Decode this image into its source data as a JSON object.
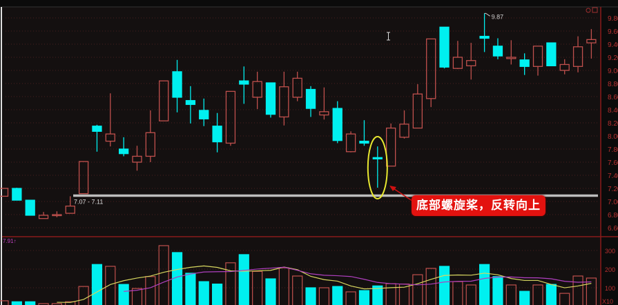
{
  "chart_data": {
    "type": "candlestick",
    "colors": {
      "up": "#c0504d",
      "down": "#00f0f0",
      "ma_short": "#d8d860",
      "ma_long": "#b040c0",
      "support_line": "#bdbdbd",
      "callout": "#e3120f",
      "highlight_ellipse": "#e8e830"
    },
    "price_axis": {
      "range": [
        6.6,
        9.95
      ],
      "ticks": [
        9.8,
        9.6,
        9.4,
        9.2,
        9.0,
        8.8,
        8.6,
        8.4,
        8.2,
        8.0,
        7.8,
        7.6,
        7.4,
        7.2,
        7.0,
        6.8,
        6.6
      ],
      "grid": true
    },
    "candles": [
      {
        "o": 7.08,
        "h": 7.2,
        "l": 7.08,
        "c": 7.2
      },
      {
        "o": 7.2,
        "h": 7.21,
        "l": 7.02,
        "c": 7.02
      },
      {
        "o": 7.02,
        "h": 7.02,
        "l": 6.79,
        "c": 6.79
      },
      {
        "o": 6.74,
        "h": 6.84,
        "l": 6.74,
        "c": 6.79
      },
      {
        "o": 6.79,
        "h": 6.85,
        "l": 6.76,
        "c": 6.8
      },
      {
        "o": 6.82,
        "h": 7.08,
        "l": 6.82,
        "c": 6.93
      },
      {
        "o": 7.12,
        "h": 7.61,
        "l": 7.12,
        "c": 7.61
      },
      {
        "o": 8.15,
        "h": 8.17,
        "l": 7.76,
        "c": 8.07
      },
      {
        "o": 7.92,
        "h": 8.65,
        "l": 7.84,
        "c": 8.03
      },
      {
        "o": 7.8,
        "h": 7.98,
        "l": 7.69,
        "c": 7.73
      },
      {
        "o": 7.6,
        "h": 7.85,
        "l": 7.47,
        "c": 7.69
      },
      {
        "o": 7.69,
        "h": 8.39,
        "l": 7.6,
        "c": 8.05
      },
      {
        "o": 8.23,
        "h": 8.84,
        "l": 8.23,
        "c": 8.84
      },
      {
        "o": 8.98,
        "h": 9.16,
        "l": 8.36,
        "c": 8.59
      },
      {
        "o": 8.54,
        "h": 8.76,
        "l": 8.19,
        "c": 8.48
      },
      {
        "o": 8.39,
        "h": 8.57,
        "l": 8.15,
        "c": 8.26
      },
      {
        "o": 8.15,
        "h": 8.35,
        "l": 7.75,
        "c": 7.91
      },
      {
        "o": 7.89,
        "h": 8.68,
        "l": 7.85,
        "c": 8.68
      },
      {
        "o": 8.84,
        "h": 9.06,
        "l": 8.49,
        "c": 8.79
      },
      {
        "o": 8.59,
        "h": 8.98,
        "l": 8.41,
        "c": 8.83
      },
      {
        "o": 8.81,
        "h": 8.81,
        "l": 8.28,
        "c": 8.33
      },
      {
        "o": 8.29,
        "h": 8.98,
        "l": 8.16,
        "c": 8.75
      },
      {
        "o": 8.59,
        "h": 8.98,
        "l": 8.53,
        "c": 8.88
      },
      {
        "o": 8.71,
        "h": 8.76,
        "l": 8.29,
        "c": 8.42
      },
      {
        "o": 8.32,
        "h": 8.74,
        "l": 8.25,
        "c": 8.37
      },
      {
        "o": 8.42,
        "h": 8.53,
        "l": 7.89,
        "c": 7.93
      },
      {
        "o": 7.76,
        "h": 8.07,
        "l": 7.75,
        "c": 8.03
      },
      {
        "o": 7.92,
        "h": 8.24,
        "l": 7.85,
        "c": 7.89
      },
      {
        "o": 7.67,
        "h": 7.84,
        "l": 7.21,
        "c": 7.65
      },
      {
        "o": 7.54,
        "h": 8.19,
        "l": 7.54,
        "c": 8.12
      },
      {
        "o": 7.98,
        "h": 8.39,
        "l": 7.96,
        "c": 8.18
      },
      {
        "o": 8.12,
        "h": 8.79,
        "l": 8.12,
        "c": 8.64
      },
      {
        "o": 8.57,
        "h": 9.48,
        "l": 8.44,
        "c": 9.48
      },
      {
        "o": 9.66,
        "h": 9.66,
        "l": 9.03,
        "c": 9.05
      },
      {
        "o": 9.03,
        "h": 9.45,
        "l": 9.02,
        "c": 9.2
      },
      {
        "o": 9.07,
        "h": 9.42,
        "l": 8.86,
        "c": 9.15
      },
      {
        "o": 9.52,
        "h": 9.87,
        "l": 9.28,
        "c": 9.49
      },
      {
        "o": 9.37,
        "h": 9.49,
        "l": 9.17,
        "c": 9.22
      },
      {
        "o": 9.18,
        "h": 9.46,
        "l": 9.09,
        "c": 9.2
      },
      {
        "o": 9.16,
        "h": 9.26,
        "l": 8.93,
        "c": 9.06
      },
      {
        "o": 9.06,
        "h": 9.37,
        "l": 8.92,
        "c": 9.37
      },
      {
        "o": 9.42,
        "h": 9.42,
        "l": 9.07,
        "c": 9.07
      },
      {
        "o": 9.0,
        "h": 9.17,
        "l": 8.94,
        "c": 9.09
      },
      {
        "o": 9.06,
        "h": 9.52,
        "l": 8.97,
        "c": 9.36
      },
      {
        "o": 9.42,
        "h": 9.63,
        "l": 9.18,
        "c": 9.47
      }
    ],
    "volume": [
      30,
      25,
      25,
      15,
      15,
      25,
      107,
      225,
      215,
      118,
      96,
      160,
      326,
      289,
      178,
      133,
      120,
      234,
      278,
      188,
      148,
      207,
      163,
      100,
      100,
      107,
      78,
      85,
      110,
      122,
      120,
      170,
      204,
      215,
      133,
      115,
      225,
      160,
      115,
      81,
      115,
      118,
      70,
      163,
      152
    ],
    "volume_axis": {
      "range": [
        0,
        330
      ],
      "ticks": [
        "300",
        "200",
        "100"
      ],
      "unit_label": "X10"
    },
    "support_label": "7.07 - 7.11",
    "support_price": 7.09,
    "high_marker": {
      "index": 36,
      "label": "9.87"
    },
    "highlight_index": 28,
    "volume_panel_label": "7.91",
    "callout_text": "底部螺旋桨，反转向上"
  }
}
